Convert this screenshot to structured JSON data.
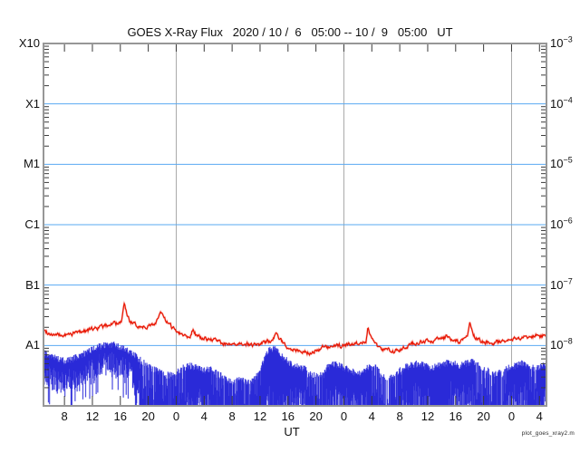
{
  "chart_data": {
    "type": "line",
    "title": "GOES X-Ray Flux   2020 / 10 /  6   05:00 -- 10 /  9   05:00   UT",
    "xlabel": "UT",
    "watermark": "plot_goes_xray2.m",
    "x_span_hours": 72,
    "x_ticks": [
      {
        "hour": 3,
        "label": "8"
      },
      {
        "hour": 7,
        "label": "12"
      },
      {
        "hour": 11,
        "label": "16"
      },
      {
        "hour": 15,
        "label": "20"
      },
      {
        "hour": 19,
        "label": "0"
      },
      {
        "hour": 23,
        "label": "4"
      },
      {
        "hour": 27,
        "label": "8"
      },
      {
        "hour": 31,
        "label": "12"
      },
      {
        "hour": 35,
        "label": "16"
      },
      {
        "hour": 39,
        "label": "20"
      },
      {
        "hour": 43,
        "label": "0"
      },
      {
        "hour": 47,
        "label": "4"
      },
      {
        "hour": 51,
        "label": "8"
      },
      {
        "hour": 55,
        "label": "12"
      },
      {
        "hour": 59,
        "label": "16"
      },
      {
        "hour": 63,
        "label": "20"
      },
      {
        "hour": 67,
        "label": "0"
      },
      {
        "hour": 71,
        "label": "4"
      }
    ],
    "day_boundaries_hours": [
      19,
      43,
      67
    ],
    "y_left_labels": [
      {
        "text": "X10"
      },
      {
        "text": "X1"
      },
      {
        "text": "M1"
      },
      {
        "text": "C1"
      },
      {
        "text": "B1"
      },
      {
        "text": "A1"
      }
    ],
    "y_right_labels": [
      {
        "base": "10",
        "exp": "−3"
      },
      {
        "base": "10",
        "exp": "−4"
      },
      {
        "base": "10",
        "exp": "−5"
      },
      {
        "base": "10",
        "exp": "−6"
      },
      {
        "base": "10",
        "exp": "−7"
      },
      {
        "base": "10",
        "exp": "−8"
      }
    ],
    "y_range_exp": [
      -3,
      -9
    ],
    "grid_decades_exp": [
      -4,
      -5,
      -6,
      -7,
      -8
    ],
    "colors": {
      "red_line": "#e81400",
      "blue_line": "#2a2ad8",
      "blue_halo": "#7878e8",
      "grid_blue": "#5aaaf2",
      "frame_gray": "#979797",
      "day_line_gray": "#a8a8a8",
      "tick_dark": "#3a3a3a"
    },
    "series": [
      {
        "name": "xray-long-1-8A",
        "color": "#e81400",
        "points": [
          [
            0,
            1.8e-08
          ],
          [
            0.7,
            1.62e-08
          ],
          [
            1.5,
            1.52e-08
          ],
          [
            2.5,
            1.45e-08
          ],
          [
            3.5,
            1.5e-08
          ],
          [
            4.5,
            1.62e-08
          ],
          [
            5.5,
            1.72e-08
          ],
          [
            6.5,
            1.82e-08
          ],
          [
            7.5,
            1.95e-08
          ],
          [
            8.5,
            2.05e-08
          ],
          [
            9.3,
            2.2e-08
          ],
          [
            10.2,
            2.42e-08
          ],
          [
            10.7,
            2.2e-08
          ],
          [
            11.2,
            2.5e-08
          ],
          [
            11.6,
            5e-08
          ],
          [
            11.9,
            3.3e-08
          ],
          [
            12.4,
            2.5e-08
          ],
          [
            13,
            2.2e-08
          ],
          [
            14,
            2.05e-08
          ],
          [
            15,
            2.1e-08
          ],
          [
            15.8,
            2.2e-08
          ],
          [
            16.3,
            2.7e-08
          ],
          [
            16.7,
            3.6e-08
          ],
          [
            17.2,
            2.9e-08
          ],
          [
            17.8,
            2.3e-08
          ],
          [
            18.4,
            2e-08
          ],
          [
            19,
            1.8e-08
          ],
          [
            19.8,
            1.55e-08
          ],
          [
            20.6,
            1.42e-08
          ],
          [
            21.0,
            1.45e-08
          ],
          [
            21.4,
            1.9e-08
          ],
          [
            21.9,
            1.45e-08
          ],
          [
            22.6,
            1.32e-08
          ],
          [
            23.5,
            1.28e-08
          ],
          [
            24.5,
            1.22e-08
          ],
          [
            25.5,
            1.12e-08
          ],
          [
            26.5,
            1.05e-08
          ],
          [
            27.5,
            9.8e-09
          ],
          [
            28.5,
            1.08e-08
          ],
          [
            29.5,
            1.05e-08
          ],
          [
            30.5,
            1e-08
          ],
          [
            31.5,
            1.1e-08
          ],
          [
            32.5,
            1.2e-08
          ],
          [
            33.3,
            1.5e-08
          ],
          [
            34,
            1.2e-08
          ],
          [
            35,
            9.5e-09
          ],
          [
            36,
            8.5e-09
          ],
          [
            37,
            8e-09
          ],
          [
            38,
            7.5e-09
          ],
          [
            39,
            8.2e-09
          ],
          [
            40,
            9.5e-09
          ],
          [
            41,
            9e-09
          ],
          [
            42,
            9.8e-09
          ],
          [
            43,
            1e-08
          ],
          [
            44,
            1.05e-08
          ],
          [
            45,
            1.1e-08
          ],
          [
            45.8,
            1.15e-08
          ],
          [
            46.15,
            1.2e-08
          ],
          [
            46.45,
            2e-08
          ],
          [
            46.8,
            1.45e-08
          ],
          [
            47.3,
            1.1e-08
          ],
          [
            48,
            9.5e-09
          ],
          [
            49,
            8.5e-09
          ],
          [
            50,
            8e-09
          ],
          [
            51,
            8.8e-09
          ],
          [
            52,
            1e-08
          ],
          [
            53,
            1.08e-08
          ],
          [
            54,
            1.12e-08
          ],
          [
            55,
            1.15e-08
          ],
          [
            56,
            1.22e-08
          ],
          [
            57,
            1.3e-08
          ],
          [
            57.8,
            1.42e-08
          ],
          [
            58.6,
            1.18e-08
          ],
          [
            59.5,
            1.15e-08
          ],
          [
            60.3,
            1.25e-08
          ],
          [
            60.7,
            1.35e-08
          ],
          [
            61.0,
            2.6e-08
          ],
          [
            61.4,
            1.6e-08
          ],
          [
            61.9,
            1.3e-08
          ],
          [
            62.6,
            1.2e-08
          ],
          [
            63.5,
            1.12e-08
          ],
          [
            64.5,
            1.1e-08
          ],
          [
            65.5,
            1.18e-08
          ],
          [
            66.5,
            1.25e-08
          ],
          [
            67.5,
            1.3e-08
          ],
          [
            68.5,
            1.35e-08
          ],
          [
            69.5,
            1.42e-08
          ],
          [
            70.5,
            1.45e-08
          ],
          [
            71.2,
            1.38e-08
          ],
          [
            72,
            1.55e-08
          ]
        ]
      },
      {
        "name": "xray-short-0.5-4A",
        "color": "#2a2ad8",
        "top_envelope": [
          [
            0,
            7.5e-09
          ],
          [
            1,
            6.5e-09
          ],
          [
            2,
            6e-09
          ],
          [
            3,
            5.5e-09
          ],
          [
            4,
            5.8e-09
          ],
          [
            5,
            6.5e-09
          ],
          [
            6,
            7.5e-09
          ],
          [
            7,
            8.5e-09
          ],
          [
            8,
            9.5e-09
          ],
          [
            9,
            1e-08
          ],
          [
            10,
            1.05e-08
          ],
          [
            11,
            9.5e-09
          ],
          [
            12,
            8.5e-09
          ],
          [
            13,
            7e-09
          ],
          [
            14,
            5.5e-09
          ],
          [
            15,
            4.5e-09
          ],
          [
            16,
            4e-09
          ],
          [
            17,
            3.5e-09
          ],
          [
            18,
            3.2e-09
          ],
          [
            19,
            3.6e-09
          ],
          [
            20,
            4.2e-09
          ],
          [
            21,
            4.6e-09
          ],
          [
            22,
            4.2e-09
          ],
          [
            23,
            3.8e-09
          ],
          [
            24,
            4.2e-09
          ],
          [
            25,
            3.4e-09
          ],
          [
            26,
            2.8e-09
          ],
          [
            27,
            2.4e-09
          ],
          [
            28,
            2.8e-09
          ],
          [
            29,
            2.4e-09
          ],
          [
            30,
            2.5e-09
          ],
          [
            31,
            4e-09
          ],
          [
            31.7,
            6.5e-09
          ],
          [
            32.3,
            8.5e-09
          ],
          [
            33,
            8.8e-09
          ],
          [
            33.7,
            7.5e-09
          ],
          [
            34.5,
            6e-09
          ],
          [
            35.5,
            4.8e-09
          ],
          [
            36.5,
            4.4e-09
          ],
          [
            37.5,
            4e-09
          ],
          [
            38.5,
            3.2e-09
          ],
          [
            39.5,
            3e-09
          ],
          [
            40.5,
            4.2e-09
          ],
          [
            41.5,
            5e-09
          ],
          [
            42.5,
            4.6e-09
          ],
          [
            43.5,
            4e-09
          ],
          [
            44.5,
            3.6e-09
          ],
          [
            45.5,
            3.4e-09
          ],
          [
            46.5,
            4.4e-09
          ],
          [
            47.5,
            4.4e-09
          ],
          [
            48.5,
            3.2e-09
          ],
          [
            49.5,
            2.8e-09
          ],
          [
            50.5,
            3.4e-09
          ],
          [
            51.5,
            4.2e-09
          ],
          [
            52.5,
            4.6e-09
          ],
          [
            53.5,
            5e-09
          ],
          [
            54.5,
            4.6e-09
          ],
          [
            55.5,
            4.2e-09
          ],
          [
            56.5,
            4.6e-09
          ],
          [
            57.5,
            5e-09
          ],
          [
            58.5,
            5.2e-09
          ],
          [
            59.5,
            4.6e-09
          ],
          [
            60.5,
            5e-09
          ],
          [
            61.5,
            5.4e-09
          ],
          [
            62.5,
            4.6e-09
          ],
          [
            63.5,
            3.8e-09
          ],
          [
            64.5,
            3.4e-09
          ],
          [
            65.5,
            3.8e-09
          ],
          [
            66.5,
            4.2e-09
          ],
          [
            67.5,
            4.6e-09
          ],
          [
            68.5,
            5e-09
          ],
          [
            69.5,
            4.4e-09
          ],
          [
            70.5,
            4.2e-09
          ],
          [
            71.2,
            4.6e-09
          ],
          [
            72,
            5e-09
          ]
        ],
        "noise": {
          "quiet_until_hour": 13,
          "quiet_depth_decades": 0.55,
          "default_depth_decades": 1.1,
          "dropout_zones": [
            [
              13.8,
              20.3,
              3.2
            ],
            [
              23.8,
              31.2,
              3.2
            ],
            [
              31.2,
              34.5,
              1.9
            ],
            [
              37.6,
              40.3,
              2.7
            ],
            [
              46.8,
              51.4,
              3.0
            ],
            [
              55.3,
              58.2,
              2.1
            ],
            [
              61.8,
              66.2,
              3.1
            ],
            [
              69.3,
              70.7,
              2.4
            ]
          ]
        }
      }
    ]
  }
}
